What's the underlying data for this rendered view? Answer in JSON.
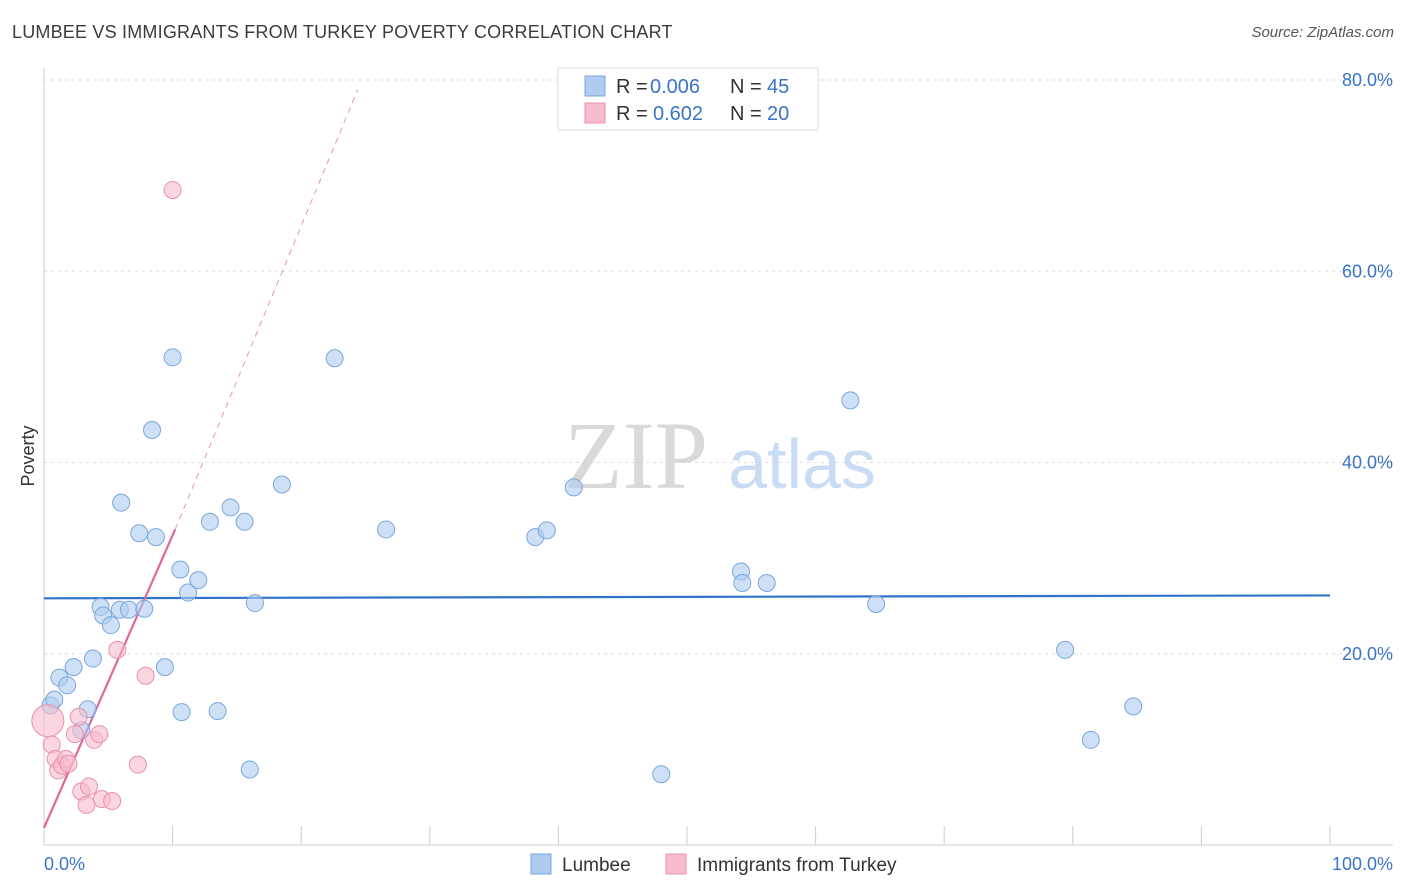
{
  "title": "LUMBEE VS IMMIGRANTS FROM TURKEY POVERTY CORRELATION CHART",
  "source": "Source: ZipAtlas.com",
  "watermark": {
    "zip": "ZIP",
    "atlas": "atlas"
  },
  "colors": {
    "lumbee_fill": "#aecbf0",
    "lumbee_stroke": "#7aa6dc",
    "lumbee_line": "#2f72c8",
    "turkey_fill": "#f7bccc",
    "turkey_stroke": "#ec8fab",
    "turkey_line": "#e0679a",
    "tick_text": "#3a74c8",
    "grid": "#dddddd"
  },
  "legend": {
    "items": [
      {
        "r_label": "R =",
        "r_value": "0.006",
        "n_label": "N =",
        "n_value": "45"
      },
      {
        "r_label": "R =",
        "r_value": "0.602",
        "n_label": "N =",
        "n_value": "20"
      }
    ],
    "bottom": [
      "Lumbee",
      "Immigrants from Turkey"
    ]
  },
  "chart_data": {
    "type": "scatter",
    "title": "LUMBEE VS IMMIGRANTS FROM TURKEY POVERTY CORRELATION CHART",
    "xlabel": "",
    "ylabel": "Poverty",
    "xlim": [
      0,
      100
    ],
    "ylim": [
      0,
      80
    ],
    "x_tick_labels": [
      "0.0%",
      "100.0%"
    ],
    "y_ticks": [
      20,
      40,
      60,
      80
    ],
    "y_tick_labels": [
      "20.0%",
      "40.0%",
      "60.0%",
      "80.0%"
    ],
    "grid": true,
    "legend_position": "top-center",
    "series": [
      {
        "name": "Lumbee",
        "r": 0.006,
        "n": 45,
        "trend": {
          "x": [
            0,
            100
          ],
          "y": [
            25.8,
            26.1
          ]
        },
        "points": [
          [
            0.5,
            14.6
          ],
          [
            0.8,
            15.2
          ],
          [
            1.2,
            17.5
          ],
          [
            1.8,
            16.7
          ],
          [
            2.3,
            18.6
          ],
          [
            2.9,
            12.0
          ],
          [
            3.4,
            14.2
          ],
          [
            3.8,
            19.5
          ],
          [
            4.4,
            24.9
          ],
          [
            4.6,
            24.0
          ],
          [
            5.2,
            23.0
          ],
          [
            5.9,
            24.6
          ],
          [
            6.0,
            35.8
          ],
          [
            6.6,
            24.6
          ],
          [
            7.4,
            32.6
          ],
          [
            7.8,
            24.7
          ],
          [
            8.4,
            43.4
          ],
          [
            8.7,
            32.2
          ],
          [
            9.4,
            18.6
          ],
          [
            10.0,
            51.0
          ],
          [
            10.6,
            28.8
          ],
          [
            10.7,
            13.9
          ],
          [
            11.2,
            26.4
          ],
          [
            12.0,
            27.7
          ],
          [
            12.9,
            33.8
          ],
          [
            13.5,
            14.0
          ],
          [
            14.5,
            35.3
          ],
          [
            15.6,
            33.8
          ],
          [
            16.0,
            7.9
          ],
          [
            16.4,
            25.3
          ],
          [
            18.5,
            37.7
          ],
          [
            22.6,
            50.9
          ],
          [
            26.6,
            33.0
          ],
          [
            38.2,
            32.2
          ],
          [
            39.1,
            32.9
          ],
          [
            41.2,
            37.4
          ],
          [
            48.0,
            7.4
          ],
          [
            54.2,
            28.6
          ],
          [
            54.3,
            27.4
          ],
          [
            56.2,
            27.4
          ],
          [
            62.7,
            46.5
          ],
          [
            64.7,
            25.2
          ],
          [
            79.4,
            20.4
          ],
          [
            81.4,
            11.0
          ],
          [
            84.7,
            14.5
          ]
        ]
      },
      {
        "name": "Immigrants from Turkey",
        "r": 0.602,
        "n": 20,
        "trend": {
          "x": [
            0,
            10.2
          ],
          "y": [
            1.8,
            33.0
          ]
        },
        "trend_extended": {
          "x": [
            10.2,
            24.4
          ],
          "y": [
            33.0,
            79.0
          ]
        },
        "points": [
          [
            0.3,
            13.0
          ],
          [
            0.6,
            10.5
          ],
          [
            0.9,
            9.0
          ],
          [
            1.1,
            7.8
          ],
          [
            1.4,
            8.3
          ],
          [
            1.7,
            9.0
          ],
          [
            1.9,
            8.5
          ],
          [
            2.4,
            11.6
          ],
          [
            2.7,
            13.4
          ],
          [
            2.9,
            5.6
          ],
          [
            3.3,
            4.2
          ],
          [
            3.5,
            6.1
          ],
          [
            3.9,
            11.0
          ],
          [
            4.3,
            11.6
          ],
          [
            4.5,
            4.8
          ],
          [
            5.3,
            4.6
          ],
          [
            5.7,
            20.4
          ],
          [
            7.3,
            8.4
          ],
          [
            7.9,
            17.7
          ],
          [
            10.0,
            68.5
          ]
        ]
      }
    ]
  }
}
